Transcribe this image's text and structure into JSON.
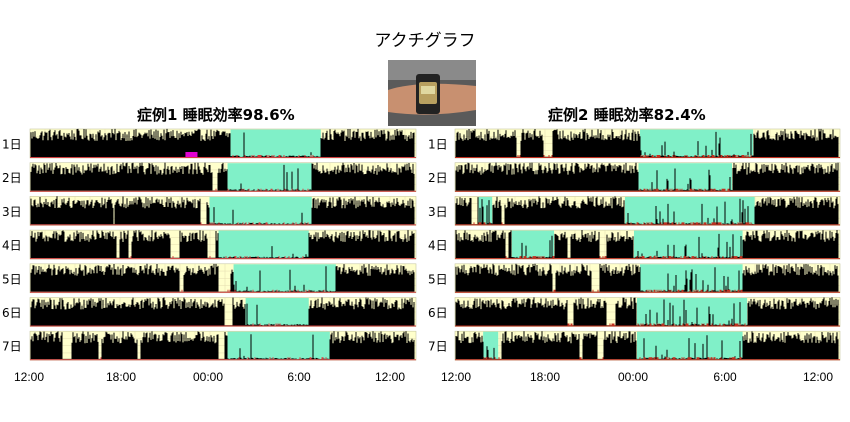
{
  "page": {
    "title": "アクチグラフ",
    "photo_icon": "wrist-actigraph-watch-photo"
  },
  "chart_data": [
    {
      "type": "actogram",
      "title": "症例1  睡眠効率98.6%",
      "row_labels": [
        "1日",
        "2日",
        "3日",
        "4日",
        "5日",
        "6日",
        "7日"
      ],
      "x_tick_labels": [
        "12:00",
        "18:00",
        "00:00",
        "6:00",
        "12:00"
      ],
      "x_range_hours": [
        12,
        38
      ],
      "sleep_episodes": [
        [
          25.4,
          31.4
        ],
        [
          25.2,
          30.8
        ],
        [
          24.0,
          30.8
        ],
        [
          24.6,
          30.6
        ],
        [
          25.6,
          32.4
        ],
        [
          26.4,
          30.6
        ],
        [
          25.2,
          32.0
        ]
      ],
      "quiet_gaps": [
        [],
        [
          [
            24.2,
            24.5
          ]
        ],
        [
          [
            17.6,
            17.7
          ],
          [
            23.4,
            23.8
          ]
        ],
        [
          [
            17.8,
            18.0
          ],
          [
            18.6,
            18.8
          ],
          [
            21.4,
            22.0
          ],
          [
            23.9,
            24.4
          ]
        ],
        [
          [
            22.0,
            22.3
          ],
          [
            24.6,
            25.4
          ]
        ],
        [
          [
            25.0,
            25.5
          ]
        ],
        [
          [
            14.2,
            14.8
          ],
          [
            16.6,
            16.8
          ],
          [
            19.2,
            19.4
          ],
          [
            24.6,
            25.0
          ]
        ]
      ],
      "marker": {
        "day": 1,
        "x_range_hours": [
          22.4,
          23.2
        ],
        "color": "#e000d0"
      },
      "wake_activity_color": "#d04040",
      "colors": {
        "background": "#ffffcc",
        "sleep_band": "#80f0c8",
        "activity": "#000000"
      }
    },
    {
      "type": "actogram",
      "title": "症例2  睡眠効率82.4%",
      "row_labels": [
        "1日",
        "2日",
        "3日",
        "4日",
        "5日",
        "6日",
        "7日"
      ],
      "x_tick_labels": [
        "12:00",
        "18:00",
        "00:00",
        "6:00",
        "12:00"
      ],
      "x_range_hours": [
        12,
        37.5
      ],
      "sleep_episodes": [
        [
          24.2,
          31.7
        ],
        [
          24.1,
          30.3
        ],
        [
          23.2,
          31.8
        ],
        [
          15.7,
          18.5
        ],
        [
          23.8,
          31.0
        ],
        [
          24.2,
          31.0
        ],
        [
          24.0,
          31.3
        ],
        [
          13.8,
          14.8
        ],
        [
          24.0,
          31.0
        ]
      ],
      "sleep_row_map": [
        1,
        2,
        3,
        4,
        4,
        5,
        6,
        7,
        7
      ],
      "extra_bands": [
        {
          "day": 3,
          "x_range_hours": [
            13.5,
            14.4
          ]
        }
      ],
      "quiet_gaps": [
        [
          [
            16.0,
            16.3
          ],
          [
            17.8,
            18.4
          ]
        ],
        [],
        [
          [
            13.0,
            13.4
          ],
          [
            15.0,
            15.2
          ]
        ],
        [
          [
            15.3,
            15.5
          ],
          [
            19.4,
            19.6
          ],
          [
            21.5,
            22.0
          ]
        ],
        [
          [
            18.4,
            18.6
          ],
          [
            21.0,
            21.5
          ]
        ],
        [
          [
            19.4,
            19.8
          ],
          [
            22.0,
            22.6
          ]
        ],
        [
          [
            14.6,
            15.0
          ],
          [
            20.2,
            20.4
          ],
          [
            21.4,
            21.8
          ]
        ]
      ],
      "wake_activity_color": "#c03020",
      "colors": {
        "background": "#ffffcc",
        "sleep_band": "#80f0c8",
        "activity": "#000000"
      }
    }
  ]
}
